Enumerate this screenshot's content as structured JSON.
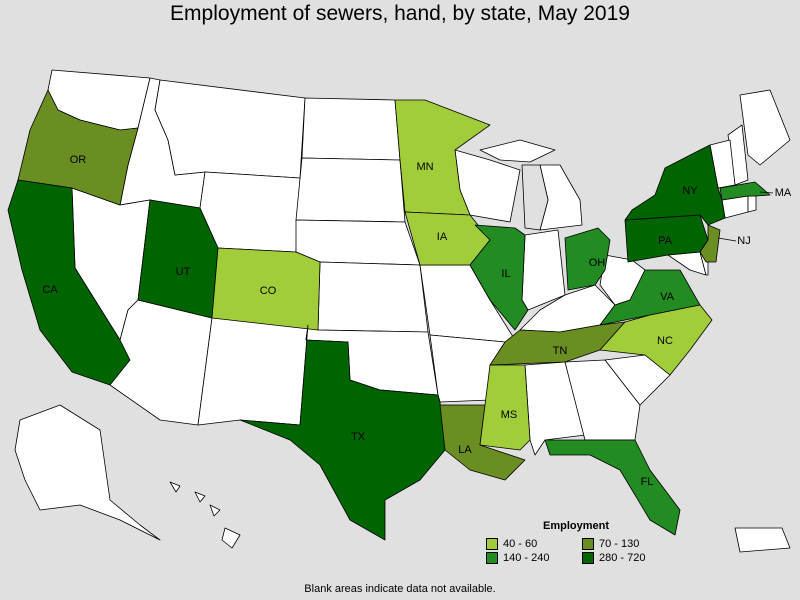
{
  "title": "Employment of sewers, hand, by state, May 2019",
  "legend": {
    "title": "Employment",
    "items": [
      {
        "label": "40 - 60",
        "color": "#a2cd3a"
      },
      {
        "label": "70 - 130",
        "color": "#6b8e23"
      },
      {
        "label": "140 - 240",
        "color": "#228b22"
      },
      {
        "label": "280 - 720",
        "color": "#006400"
      }
    ]
  },
  "note": "Blank areas indicate data not available.",
  "colors": {
    "blank": "#ffffff",
    "background": "#e0e0e0",
    "water": "#e0e0e0"
  },
  "states": [
    {
      "abbr": "OR",
      "range": "70 - 130"
    },
    {
      "abbr": "CA",
      "range": "280 - 720"
    },
    {
      "abbr": "UT",
      "range": "280 - 720"
    },
    {
      "abbr": "CO",
      "range": "40 - 60"
    },
    {
      "abbr": "TX",
      "range": "280 - 720"
    },
    {
      "abbr": "MN",
      "range": "40 - 60"
    },
    {
      "abbr": "IA",
      "range": "40 - 60"
    },
    {
      "abbr": "IL",
      "range": "140 - 240"
    },
    {
      "abbr": "LA",
      "range": "70 - 130"
    },
    {
      "abbr": "MS",
      "range": "40 - 60"
    },
    {
      "abbr": "TN",
      "range": "70 - 130"
    },
    {
      "abbr": "OH",
      "range": "140 - 240"
    },
    {
      "abbr": "VA",
      "range": "140 - 240"
    },
    {
      "abbr": "NC",
      "range": "40 - 60"
    },
    {
      "abbr": "FL",
      "range": "140 - 240"
    },
    {
      "abbr": "PA",
      "range": "280 - 720"
    },
    {
      "abbr": "NY",
      "range": "280 - 720"
    },
    {
      "abbr": "NJ",
      "range": "70 - 130"
    },
    {
      "abbr": "MA",
      "range": "140 - 240"
    }
  ]
}
